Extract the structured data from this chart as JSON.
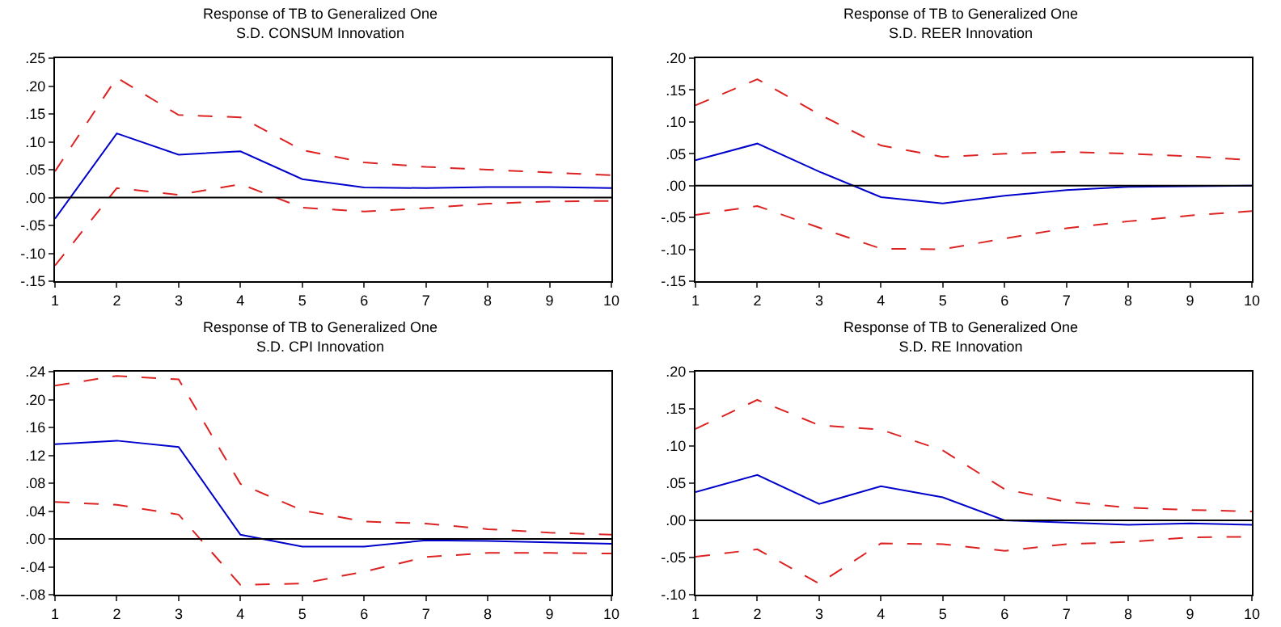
{
  "chart_data": [
    {
      "type": "line",
      "title": "Response of TB to Generalized One\nS.D. CONSUM Innovation",
      "x": [
        1,
        2,
        3,
        4,
        5,
        6,
        7,
        8,
        9,
        10
      ],
      "xlim": [
        1,
        10
      ],
      "xticks": [
        1,
        2,
        3,
        4,
        5,
        6,
        7,
        8,
        9,
        10
      ],
      "ylim": [
        -0.15,
        0.25
      ],
      "yticks": [
        {
          "value": -0.15,
          "label": "-.15"
        },
        {
          "value": -0.1,
          "label": "-.10"
        },
        {
          "value": -0.05,
          "label": "-.05"
        },
        {
          "value": 0,
          "label": ".00"
        },
        {
          "value": 0.05,
          "label": ".05"
        },
        {
          "value": 0.1,
          "label": ".10"
        },
        {
          "value": 0.15,
          "label": ".15"
        },
        {
          "value": 0.2,
          "label": ".20"
        },
        {
          "value": 0.25,
          "label": ".25"
        }
      ],
      "grid": false,
      "marker": "none",
      "ref_lines": [
        {
          "axis": "y",
          "value": 0,
          "color": "#000000"
        }
      ],
      "series": [
        {
          "color": "#0000cc",
          "line_style": "solid",
          "values": [
            -0.038,
            0.115,
            0.077,
            0.083,
            0.033,
            0.018,
            0.017,
            0.019,
            0.019,
            0.017
          ]
        },
        {
          "color": "#dd2222",
          "line_style": "dashed",
          "values": [
            0.047,
            0.215,
            0.148,
            0.144,
            0.085,
            0.063,
            0.055,
            0.05,
            0.045,
            0.04
          ]
        },
        {
          "color": "#dd2222",
          "line_style": "dashed",
          "values": [
            -0.122,
            0.017,
            0.005,
            0.024,
            -0.018,
            -0.025,
            -0.019,
            -0.011,
            -0.007,
            -0.006
          ]
        }
      ]
    },
    {
      "type": "line",
      "title": "Response of TB to Generalized One\nS.D. REER Innovation",
      "x": [
        1,
        2,
        3,
        4,
        5,
        6,
        7,
        8,
        9,
        10
      ],
      "xlim": [
        1,
        10
      ],
      "xticks": [
        1,
        2,
        3,
        4,
        5,
        6,
        7,
        8,
        9,
        10
      ],
      "ylim": [
        -0.15,
        0.2
      ],
      "yticks": [
        {
          "value": -0.15,
          "label": "-.15"
        },
        {
          "value": -0.1,
          "label": "-.10"
        },
        {
          "value": -0.05,
          "label": "-.05"
        },
        {
          "value": 0,
          "label": ".00"
        },
        {
          "value": 0.05,
          "label": ".05"
        },
        {
          "value": 0.1,
          "label": ".10"
        },
        {
          "value": 0.15,
          "label": ".15"
        },
        {
          "value": 0.2,
          "label": ".20"
        }
      ],
      "grid": false,
      "marker": "none",
      "ref_lines": [
        {
          "axis": "y",
          "value": 0,
          "color": "#000000"
        }
      ],
      "series": [
        {
          "color": "#0000cc",
          "line_style": "solid",
          "values": [
            0.04,
            0.066,
            0.022,
            -0.018,
            -0.028,
            -0.016,
            -0.007,
            -0.002,
            -0.001,
            0.0
          ]
        },
        {
          "color": "#dd2222",
          "line_style": "dashed",
          "values": [
            0.126,
            0.167,
            0.112,
            0.063,
            0.045,
            0.05,
            0.053,
            0.05,
            0.046,
            0.04
          ]
        },
        {
          "color": "#dd2222",
          "line_style": "dashed",
          "values": [
            -0.046,
            -0.032,
            -0.066,
            -0.099,
            -0.1,
            -0.083,
            -0.067,
            -0.056,
            -0.047,
            -0.04
          ]
        }
      ]
    },
    {
      "type": "line",
      "title": "Response of TB to Generalized One\nS.D. CPI Innovation",
      "x": [
        1,
        2,
        3,
        4,
        5,
        6,
        7,
        8,
        9,
        10
      ],
      "xlim": [
        1,
        10
      ],
      "xticks": [
        1,
        2,
        3,
        4,
        5,
        6,
        7,
        8,
        9,
        10
      ],
      "ylim": [
        -0.08,
        0.24
      ],
      "yticks": [
        {
          "value": -0.08,
          "label": "-.08"
        },
        {
          "value": -0.04,
          "label": "-.04"
        },
        {
          "value": 0,
          "label": ".00"
        },
        {
          "value": 0.04,
          "label": ".04"
        },
        {
          "value": 0.08,
          "label": ".08"
        },
        {
          "value": 0.12,
          "label": ".12"
        },
        {
          "value": 0.16,
          "label": ".16"
        },
        {
          "value": 0.2,
          "label": ".20"
        },
        {
          "value": 0.24,
          "label": ".24"
        }
      ],
      "grid": false,
      "marker": "none",
      "ref_lines": [
        {
          "axis": "y",
          "value": 0,
          "color": "#000000"
        }
      ],
      "series": [
        {
          "color": "#0000cc",
          "line_style": "solid",
          "values": [
            0.136,
            0.141,
            0.132,
            0.006,
            -0.011,
            -0.011,
            -0.002,
            -0.003,
            -0.005,
            -0.007
          ]
        },
        {
          "color": "#dd2222",
          "line_style": "dashed",
          "values": [
            0.22,
            0.234,
            0.229,
            0.079,
            0.041,
            0.025,
            0.022,
            0.014,
            0.009,
            0.006
          ]
        },
        {
          "color": "#dd2222",
          "line_style": "dashed",
          "values": [
            0.053,
            0.049,
            0.035,
            -0.066,
            -0.064,
            -0.047,
            -0.026,
            -0.02,
            -0.02,
            -0.021
          ]
        }
      ]
    },
    {
      "type": "line",
      "title": "Response of TB to Generalized One\nS.D. RE Innovation",
      "x": [
        1,
        2,
        3,
        4,
        5,
        6,
        7,
        8,
        9,
        10
      ],
      "xlim": [
        1,
        10
      ],
      "xticks": [
        1,
        2,
        3,
        4,
        5,
        6,
        7,
        8,
        9,
        10
      ],
      "ylim": [
        -0.1,
        0.2
      ],
      "yticks": [
        {
          "value": -0.1,
          "label": "-.10"
        },
        {
          "value": -0.05,
          "label": "-.05"
        },
        {
          "value": 0,
          "label": ".00"
        },
        {
          "value": 0.05,
          "label": ".05"
        },
        {
          "value": 0.1,
          "label": ".10"
        },
        {
          "value": 0.15,
          "label": ".15"
        },
        {
          "value": 0.2,
          "label": ".20"
        }
      ],
      "grid": false,
      "marker": "none",
      "ref_lines": [
        {
          "axis": "y",
          "value": 0,
          "color": "#000000"
        }
      ],
      "series": [
        {
          "color": "#0000cc",
          "line_style": "solid",
          "values": [
            0.038,
            0.061,
            0.022,
            0.046,
            0.031,
            0.0,
            -0.003,
            -0.006,
            -0.004,
            -0.006
          ]
        },
        {
          "color": "#dd2222",
          "line_style": "dashed",
          "values": [
            0.123,
            0.162,
            0.128,
            0.122,
            0.094,
            0.042,
            0.025,
            0.017,
            0.014,
            0.012
          ]
        },
        {
          "color": "#dd2222",
          "line_style": "dashed",
          "values": [
            -0.049,
            -0.039,
            -0.085,
            -0.031,
            -0.032,
            -0.041,
            -0.032,
            -0.029,
            -0.023,
            -0.022
          ]
        }
      ]
    }
  ]
}
